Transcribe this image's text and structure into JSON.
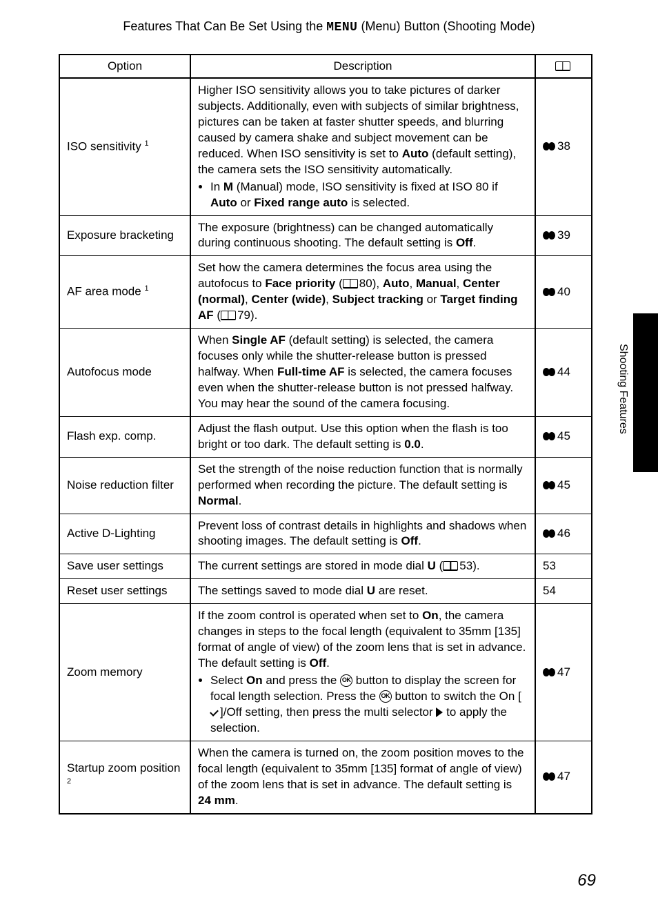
{
  "header": {
    "prefix": "Features That Can Be Set Using the ",
    "menu_word": "MENU",
    "suffix": " (Menu) Button (Shooting Mode)"
  },
  "table": {
    "columns": {
      "option": "Option",
      "description": "Description",
      "reference_icon": "book-icon"
    },
    "rows": [
      {
        "option": {
          "text": "ISO sensitivity",
          "sup": "1"
        },
        "desc": {
          "segments": [
            {
              "t": "Higher ISO sensitivity allows you to take pictures of darker subjects. Additionally, even with subjects of similar brightness, pictures can be taken at faster shutter speeds, and blurring caused by camera shake and subject movement can be reduced. When ISO sensitivity is set to "
            },
            {
              "t": "Auto",
              "b": true
            },
            {
              "t": " (default setting), the camera sets the ISO sensitivity automatically."
            }
          ],
          "bullets": [
            {
              "segments": [
                {
                  "t": "In "
                },
                {
                  "t": "M",
                  "b": true
                },
                {
                  "t": " (Manual) mode, ISO sensitivity is fixed at ISO 80 if "
                },
                {
                  "t": "Auto",
                  "b": true
                },
                {
                  "t": " or "
                },
                {
                  "t": "Fixed range auto",
                  "b": true
                },
                {
                  "t": " is selected."
                }
              ]
            }
          ]
        },
        "ref": {
          "type": "section",
          "value": "38"
        }
      },
      {
        "option": {
          "text": "Exposure bracketing"
        },
        "desc": {
          "segments": [
            {
              "t": "The exposure (brightness) can be changed automatically during continuous shooting. The default setting is "
            },
            {
              "t": "Off",
              "b": true
            },
            {
              "t": "."
            }
          ]
        },
        "ref": {
          "type": "section",
          "value": "39"
        }
      },
      {
        "option": {
          "text": "AF area mode",
          "sup": "1"
        },
        "desc": {
          "segments": [
            {
              "t": "Set how the camera determines the focus area using the autofocus to "
            },
            {
              "t": "Face priority",
              "b": true
            },
            {
              "t": " ("
            },
            {
              "book_ref": "80"
            },
            {
              "t": "), "
            },
            {
              "t": "Auto",
              "b": true
            },
            {
              "t": ", "
            },
            {
              "t": "Manual",
              "b": true
            },
            {
              "t": ", "
            },
            {
              "t": "Center (normal)",
              "b": true
            },
            {
              "t": ", "
            },
            {
              "t": "Center (wide)",
              "b": true
            },
            {
              "t": ", "
            },
            {
              "t": "Subject tracking",
              "b": true
            },
            {
              "t": " or "
            },
            {
              "t": "Target finding AF",
              "b": true
            },
            {
              "t": " ("
            },
            {
              "book_ref": "79"
            },
            {
              "t": ")."
            }
          ]
        },
        "ref": {
          "type": "section",
          "value": "40"
        }
      },
      {
        "option": {
          "text": "Autofocus mode"
        },
        "desc": {
          "segments": [
            {
              "t": "When "
            },
            {
              "t": "Single AF",
              "b": true
            },
            {
              "t": " (default setting) is selected, the camera focuses only while the shutter-release button is pressed halfway. When "
            },
            {
              "t": "Full-time AF",
              "b": true
            },
            {
              "t": " is selected, the camera focuses even when the shutter-release button is not pressed halfway. You may hear the sound of the camera focusing."
            }
          ]
        },
        "ref": {
          "type": "section",
          "value": "44"
        }
      },
      {
        "option": {
          "text": "Flash exp. comp."
        },
        "desc": {
          "segments": [
            {
              "t": "Adjust the flash output. Use this option when the flash is too bright or too dark. The default setting is "
            },
            {
              "t": "0.0",
              "b": true
            },
            {
              "t": "."
            }
          ]
        },
        "ref": {
          "type": "section",
          "value": "45"
        }
      },
      {
        "option": {
          "text": "Noise reduction filter"
        },
        "desc": {
          "segments": [
            {
              "t": "Set the strength of the noise reduction function that is normally performed when recording the picture. The default setting is "
            },
            {
              "t": "Normal",
              "b": true
            },
            {
              "t": "."
            }
          ]
        },
        "ref": {
          "type": "section",
          "value": "45"
        }
      },
      {
        "option": {
          "text": "Active D-Lighting"
        },
        "desc": {
          "segments": [
            {
              "t": "Prevent loss of contrast details in highlights and shadows when shooting images. The default setting is "
            },
            {
              "t": "Off",
              "b": true
            },
            {
              "t": "."
            }
          ]
        },
        "ref": {
          "type": "section",
          "value": "46"
        }
      },
      {
        "option": {
          "text": "Save user settings"
        },
        "desc": {
          "segments": [
            {
              "t": "The current settings are stored in mode dial "
            },
            {
              "t": "U",
              "b": true
            },
            {
              "t": " ("
            },
            {
              "book_ref": "53"
            },
            {
              "t": ")."
            }
          ]
        },
        "ref": {
          "type": "page",
          "value": "53"
        }
      },
      {
        "option": {
          "text": "Reset user settings"
        },
        "desc": {
          "segments": [
            {
              "t": "The settings saved to mode dial "
            },
            {
              "t": "U",
              "b": true
            },
            {
              "t": " are reset."
            }
          ]
        },
        "ref": {
          "type": "page",
          "value": "54"
        }
      },
      {
        "option": {
          "text": "Zoom memory"
        },
        "desc": {
          "segments": [
            {
              "t": "If the zoom control is operated when set to "
            },
            {
              "t": "On",
              "b": true
            },
            {
              "t": ", the camera changes in steps to the focal length (equivalent to 35mm [135] format of angle of view) of the zoom lens that is set in advance. The default setting is "
            },
            {
              "t": "Off",
              "b": true
            },
            {
              "t": "."
            }
          ],
          "bullets": [
            {
              "segments": [
                {
                  "t": "Select "
                },
                {
                  "t": "On",
                  "b": true
                },
                {
                  "t": " and press the "
                },
                {
                  "ok": true
                },
                {
                  "t": " button to display the screen for focal length selection. Press the "
                },
                {
                  "ok": true
                },
                {
                  "t": " button to switch the On ["
                },
                {
                  "check": true
                },
                {
                  "t": "]/Off setting, then press the multi selector "
                },
                {
                  "tri": true
                },
                {
                  "t": " to apply the selection."
                }
              ]
            }
          ]
        },
        "ref": {
          "type": "section",
          "value": "47"
        }
      },
      {
        "option": {
          "text": "Startup zoom position",
          "sup": "2"
        },
        "desc": {
          "segments": [
            {
              "t": "When the camera is turned on, the zoom position moves to the focal length (equivalent to 35mm [135] format of angle of view) of the zoom lens that is set in advance. The default setting is "
            },
            {
              "t": "24 mm",
              "b": true
            },
            {
              "t": "."
            }
          ]
        },
        "ref": {
          "type": "section",
          "value": "47"
        }
      }
    ]
  },
  "side_label": "Shooting Features",
  "page_number": "69",
  "style": {
    "colors": {
      "text": "#000000",
      "bg": "#ffffff",
      "tab": "#000000",
      "border": "#000000"
    },
    "fontsizes": {
      "title": 18,
      "body": 17,
      "page_number": 24,
      "side_label": 16
    }
  }
}
